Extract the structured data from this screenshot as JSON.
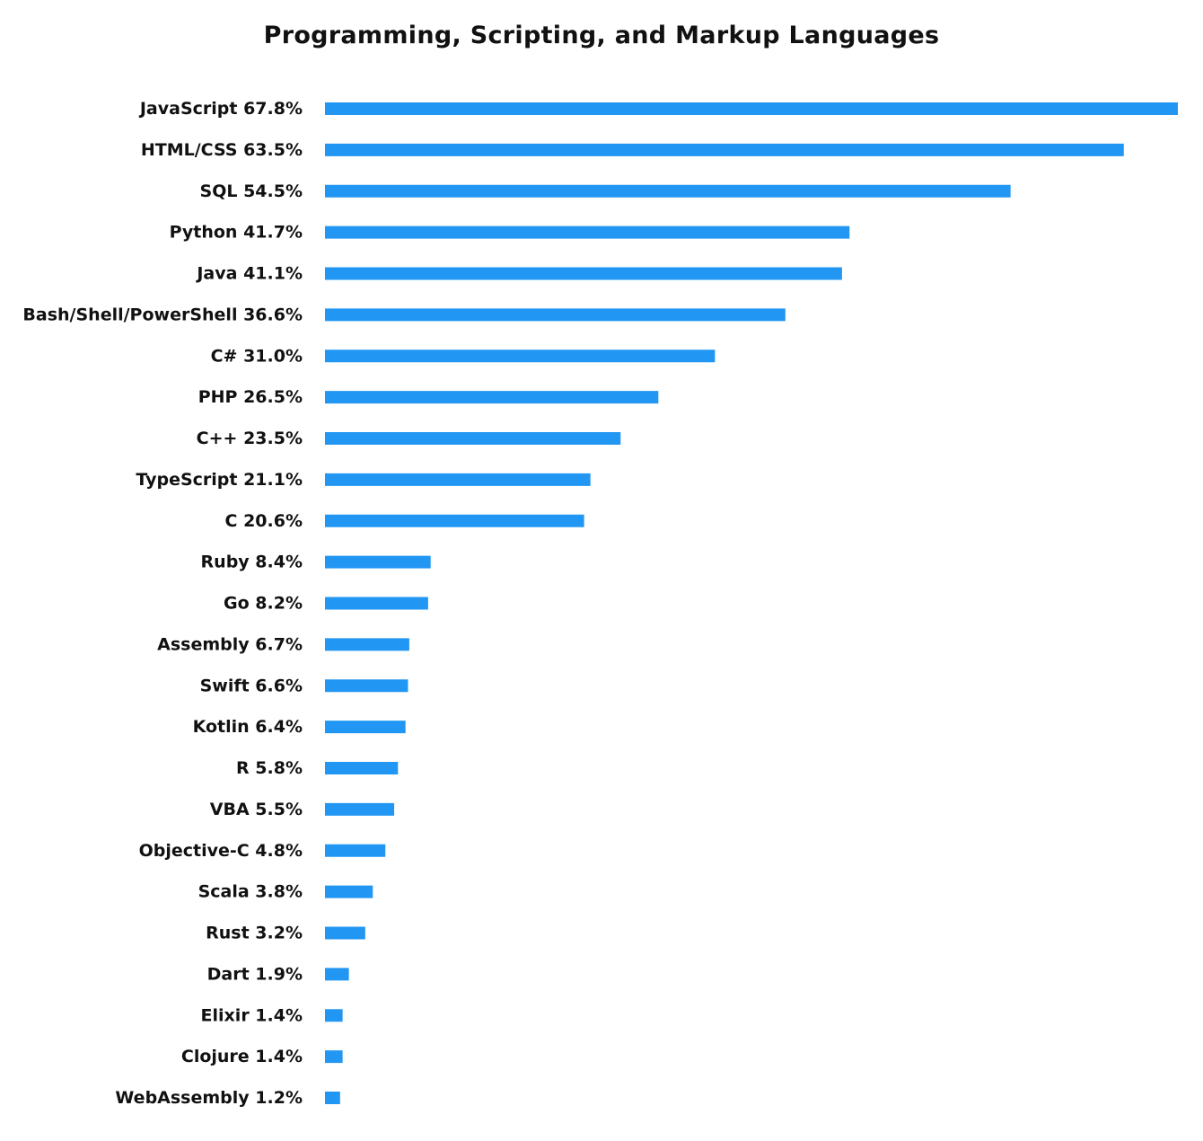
{
  "chart_data": {
    "type": "bar",
    "orientation": "horizontal",
    "title": "Programming, Scripting, and Markup Languages",
    "categories": [
      "JavaScript 67.8%",
      "HTML/CSS 63.5%",
      "SQL 54.5%",
      "Python 41.7%",
      "Java 41.1%",
      "Bash/Shell/PowerShell 36.6%",
      "C# 31.0%",
      "PHP 26.5%",
      "C++ 23.5%",
      "TypeScript 21.1%",
      "C 20.6%",
      "Ruby 8.4%",
      "Go 8.2%",
      "Assembly 6.7%",
      "Swift 6.6%",
      "Kotlin 6.4%",
      "R 5.8%",
      "VBA 5.5%",
      "Objective-C 4.8%",
      "Scala 3.8%",
      "Rust 3.2%",
      "Dart 1.9%",
      "Elixir 1.4%",
      "Clojure 1.4%",
      "WebAssembly 1.2%"
    ],
    "values": [
      67.8,
      63.5,
      54.5,
      41.7,
      41.1,
      36.6,
      31.0,
      26.5,
      23.5,
      21.1,
      20.6,
      8.4,
      8.2,
      6.7,
      6.6,
      6.4,
      5.8,
      5.5,
      4.8,
      3.8,
      3.2,
      1.9,
      1.4,
      1.4,
      1.2
    ],
    "xlim": [
      0,
      67.8
    ],
    "xlabel": "",
    "ylabel": "",
    "grid": false,
    "legend": "none",
    "bar_color": "#2196f3"
  }
}
